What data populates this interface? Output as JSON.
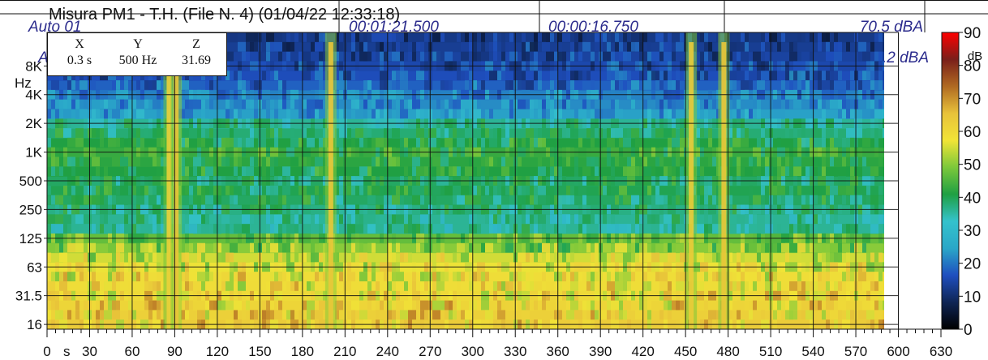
{
  "header": {
    "title": "Misura PM1 - T.H.  (File N. 4) (01/04/22 12:33:18)",
    "row1": {
      "label": "Auto 01",
      "time1": "00:01:21.500",
      "time2": "00:00:16.750",
      "level": "70.5 dBA"
    },
    "row2": {
      "label": "A",
      "level": "6.2 dBA"
    }
  },
  "readout": {
    "x_label": "X",
    "y_label": "Y",
    "z_label": "Z",
    "x_value": "0.3 s",
    "y_value": "500 Hz",
    "z_value": "31.69"
  },
  "chart_data": {
    "type": "heatmap",
    "title": "Misura PM1 - T.H.  (File N. 4) (01/04/22 12:33:18)",
    "x_axis": {
      "unit": "s",
      "range": [
        0,
        630
      ],
      "data_range": [
        0,
        600
      ],
      "ticks": [
        "0",
        "30",
        "60",
        "90",
        "120",
        "150",
        "180",
        "210",
        "240",
        "270",
        "300",
        "330",
        "360",
        "390",
        "420",
        "450",
        "480",
        "510",
        "540",
        "570",
        "600",
        "630"
      ]
    },
    "y_axis": {
      "unit": "Hz",
      "scale": "log (third-octave bands)",
      "ticks": [
        "16",
        "31.5",
        "63",
        "125",
        "250",
        "500",
        "1K",
        "2K",
        "4K",
        "8K"
      ]
    },
    "colorbar": {
      "unit": "dB",
      "range": [
        0,
        90
      ],
      "ticks": [
        "0",
        "10",
        "20",
        "30",
        "40",
        "50",
        "60",
        "70",
        "80",
        "90"
      ],
      "colors": [
        "#000000",
        "#0f2555",
        "#1f4fbf",
        "#2aa7c8",
        "#34c2cc",
        "#1fa043",
        "#7cc83a",
        "#f1e437",
        "#e8c23a",
        "#b06a22",
        "#7a1f1a",
        "#ff0000"
      ]
    },
    "layers": [
      {
        "band": "16",
        "level_db": 63
      },
      {
        "band": "20",
        "level_db": 62
      },
      {
        "band": "25",
        "level_db": 61
      },
      {
        "band": "31.5",
        "level_db": 60
      },
      {
        "band": "40",
        "level_db": 59
      },
      {
        "band": "50",
        "level_db": 59
      },
      {
        "band": "63",
        "level_db": 57
      },
      {
        "band": "80",
        "level_db": 55
      },
      {
        "band": "100",
        "level_db": 50
      },
      {
        "band": "125",
        "level_db": 47
      },
      {
        "band": "160",
        "level_db": 36
      },
      {
        "band": "200",
        "level_db": 36
      },
      {
        "band": "250",
        "level_db": 37
      },
      {
        "band": "315",
        "level_db": 39
      },
      {
        "band": "400",
        "level_db": 40
      },
      {
        "band": "500",
        "level_db": 39
      },
      {
        "band": "630",
        "level_db": 41
      },
      {
        "band": "800",
        "level_db": 42
      },
      {
        "band": "1K",
        "level_db": 43
      },
      {
        "band": "1.25K",
        "level_db": 41
      },
      {
        "band": "1.6K",
        "level_db": 38
      },
      {
        "band": "2K",
        "level_db": 36
      },
      {
        "band": "2.5K",
        "level_db": 24
      },
      {
        "band": "3.15K",
        "level_db": 22
      },
      {
        "band": "4K",
        "level_db": 21
      },
      {
        "band": "5K",
        "level_db": 18
      },
      {
        "band": "6.3K",
        "level_db": 16
      },
      {
        "band": "8K",
        "level_db": 15
      },
      {
        "band": "10K",
        "level_db": 14
      },
      {
        "band": "12.5K",
        "level_db": 13
      },
      {
        "band": "16K",
        "level_db": 12
      }
    ],
    "events": [
      {
        "time_s": 86,
        "peak_db": 62
      },
      {
        "time_s": 91,
        "peak_db": 65
      },
      {
        "time_s": 200,
        "peak_db": 64
      },
      {
        "time_s": 454,
        "peak_db": 63
      },
      {
        "time_s": 477,
        "peak_db": 64
      }
    ]
  }
}
